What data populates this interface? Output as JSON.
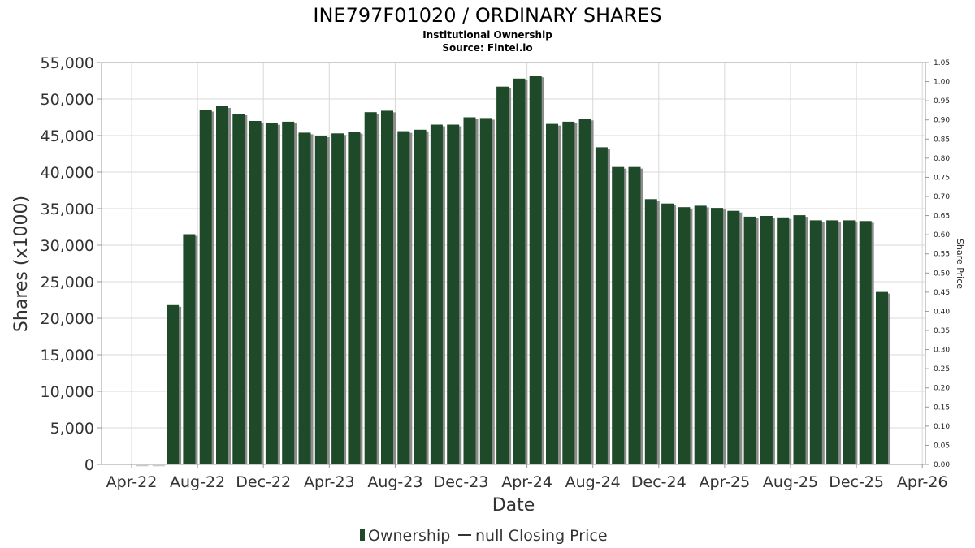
{
  "chart_data": {
    "type": "bar",
    "title": "INE797F01020 / ORDINARY SHARES",
    "subtitle": "Institutional Ownership",
    "source": "Source: Fintel.io",
    "xlabel": "Date",
    "ylabel": "Shares (x1000)",
    "y2label": "Share Price",
    "ylim": [
      0,
      55000
    ],
    "y2lim": [
      0,
      1.05
    ],
    "yticks": [
      "0",
      "5,000",
      "10,000",
      "15,000",
      "20,000",
      "25,000",
      "30,000",
      "35,000",
      "40,000",
      "45,000",
      "50,000",
      "55,000"
    ],
    "y2ticks": [
      "0.00",
      "0.05",
      "0.10",
      "0.15",
      "0.20",
      "0.25",
      "0.30",
      "0.35",
      "0.40",
      "0.45",
      "0.50",
      "0.55",
      "0.60",
      "0.65",
      "0.70",
      "0.75",
      "0.80",
      "0.85",
      "0.90",
      "0.95",
      "1.00",
      "1.05"
    ],
    "xticks": [
      "Apr-22",
      "Aug-22",
      "Dec-22",
      "Apr-23",
      "Aug-23",
      "Dec-23",
      "Apr-24",
      "Aug-24",
      "Dec-24",
      "Apr-25",
      "Aug-25",
      "Dec-25",
      "Apr-26"
    ],
    "series": [
      {
        "name": "Ownership",
        "color": "#1e4a29",
        "values": [
          50,
          50,
          21800,
          31500,
          48500,
          49000,
          48000,
          47000,
          46700,
          46900,
          45400,
          45000,
          45300,
          45500,
          48200,
          48400,
          45600,
          45800,
          46500,
          46500,
          47500,
          47400,
          51700,
          52800,
          53200,
          46600,
          46900,
          47300,
          43400,
          40700,
          40700,
          36300,
          35700,
          35200,
          35400,
          35100,
          34700,
          33900,
          34000,
          33800,
          34100,
          33400,
          33400,
          33400,
          33300,
          23600
        ]
      }
    ],
    "legend": [
      {
        "label": "Ownership",
        "symbol": "bar",
        "color": "#1e4a29"
      },
      {
        "label": "null Closing Price",
        "symbol": "line",
        "color": "#333333"
      }
    ],
    "legend_position": "bottom-center",
    "grid": true
  }
}
